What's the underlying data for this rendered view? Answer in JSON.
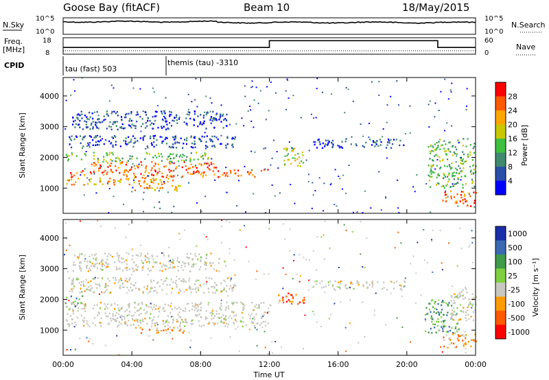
{
  "header": {
    "station": "Goose Bay (fitACF)",
    "beam": "Beam 10",
    "date": "18/May/2015"
  },
  "top_panels": {
    "nsky_label": "N.Sky",
    "nsearch_label": "N.Search",
    "nsky_ticks": [
      "10^5",
      "10^0"
    ],
    "nsearch_ticks": [
      "10^5",
      "10^0"
    ],
    "freq_label_line1": "Freq.",
    "freq_label_line2": "[MHz]",
    "freq_ticks": [
      "18",
      "8"
    ],
    "nave_label": "Nave",
    "nave_ticks": [
      "60",
      "0"
    ],
    "cpid_label": "CPID",
    "cpid_modes": [
      {
        "name": "tau (fast) 503",
        "start_hour": 0,
        "end_hour": 6
      },
      {
        "name": "themis (tau) -3310",
        "start_hour": 6,
        "end_hour": 24
      }
    ],
    "freq_steps": [
      {
        "start_hour": 0,
        "end_hour": 6,
        "level": 0.4
      },
      {
        "start_hour": 6,
        "end_hour": 12,
        "level": 0.4
      },
      {
        "start_hour": 12,
        "end_hour": 21.8,
        "level": 0.85
      },
      {
        "start_hour": 21.8,
        "end_hour": 24,
        "level": 0.4
      }
    ]
  },
  "colors": {
    "power_scale": [
      "#0000ff",
      "#2a4fa8",
      "#3f8a6e",
      "#3fbf3f",
      "#c8c800",
      "#ffa500",
      "#ff5a00",
      "#ff0000"
    ],
    "velocity_scale": [
      "#1a2ea8",
      "#3a6ab0",
      "#3f9a4a",
      "#7fd040",
      "#c8c8c0",
      "#ff9a00",
      "#ff5a00",
      "#ff0000"
    ],
    "grey": "#c8c8c0"
  },
  "chart_data": [
    {
      "type": "heatmap",
      "title": "",
      "xlabel": "Time UT",
      "ylabel": "Slant Range [km]",
      "xlim": [
        0,
        24
      ],
      "ylim": [
        180,
        4600
      ],
      "x_ticks": [
        "00:00",
        "04:00",
        "08:00",
        "12:00",
        "16:00",
        "20:00",
        "00:00"
      ],
      "y_ticks": [
        1000,
        2000,
        3000,
        4000
      ],
      "colorbar_label": "Power [dB]",
      "colorbar_ticks": [
        4,
        8,
        12,
        16,
        20,
        24,
        28
      ],
      "regions": [
        {
          "t0": 0.1,
          "t1": 6.5,
          "r0": 1100,
          "r1": 1350,
          "level": 5
        },
        {
          "t0": 0.3,
          "t1": 12.0,
          "r0": 1350,
          "r1": 1600,
          "level": 6
        },
        {
          "t0": 1.5,
          "t1": 9.0,
          "r0": 1600,
          "r1": 1850,
          "level": 6
        },
        {
          "t0": 0.1,
          "t1": 8.5,
          "r0": 1850,
          "r1": 2150,
          "level": 3
        },
        {
          "t0": 4.0,
          "t1": 7.0,
          "r0": 900,
          "r1": 1100,
          "level": 5
        },
        {
          "t0": 0.3,
          "t1": 10.0,
          "r0": 2300,
          "r1": 2700,
          "level": 1
        },
        {
          "t0": 0.5,
          "t1": 9.5,
          "r0": 2900,
          "r1": 3500,
          "level": 1
        },
        {
          "t0": 12.8,
          "t1": 14.0,
          "r0": 1700,
          "r1": 2300,
          "level": 4
        },
        {
          "t0": 14.5,
          "t1": 20.0,
          "r0": 2300,
          "r1": 2600,
          "level": 1
        },
        {
          "t0": 21.2,
          "t1": 24.0,
          "r0": 1000,
          "r1": 2600,
          "level": 3
        },
        {
          "t0": 22.0,
          "t1": 24.0,
          "r0": 400,
          "r1": 900,
          "level": 6
        }
      ]
    },
    {
      "type": "heatmap",
      "title": "",
      "xlabel": "Time UT",
      "ylabel": "Slant Range [km]",
      "xlim": [
        0,
        24
      ],
      "ylim": [
        180,
        4600
      ],
      "x_ticks": [
        "00:00",
        "04:00",
        "08:00",
        "12:00",
        "16:00",
        "20:00",
        "00:00"
      ],
      "y_ticks": [
        1000,
        2000,
        3000,
        4000
      ],
      "colorbar_label": "Velocity [m s⁻¹]",
      "colorbar_ticks": [
        "1000",
        "500",
        "100",
        "25",
        "-25",
        "-100",
        "-500",
        "-1000"
      ],
      "regions": [
        {
          "t0": 0.1,
          "t1": 12.0,
          "r0": 1100,
          "r1": 1900,
          "level": 4
        },
        {
          "t0": 0.1,
          "t1": 1.2,
          "r0": 1700,
          "r1": 2100,
          "level": 2
        },
        {
          "t0": 4.0,
          "t1": 7.0,
          "r0": 900,
          "r1": 1100,
          "level": 5
        },
        {
          "t0": 0.3,
          "t1": 10.0,
          "r0": 2200,
          "r1": 2700,
          "level": 4
        },
        {
          "t0": 0.5,
          "t1": 9.5,
          "r0": 2900,
          "r1": 3500,
          "level": 4
        },
        {
          "t0": 12.5,
          "t1": 14.0,
          "r0": 1800,
          "r1": 2200,
          "level": 6
        },
        {
          "t0": 14.5,
          "t1": 20.0,
          "r0": 2300,
          "r1": 2600,
          "level": 4
        },
        {
          "t0": 21.0,
          "t1": 23.0,
          "r0": 900,
          "r1": 2000,
          "level": 2
        },
        {
          "t0": 22.5,
          "t1": 24.0,
          "r0": 1300,
          "r1": 2400,
          "level": 4
        },
        {
          "t0": 22.0,
          "t1": 24.0,
          "r0": 400,
          "r1": 900,
          "level": 5
        }
      ]
    }
  ]
}
